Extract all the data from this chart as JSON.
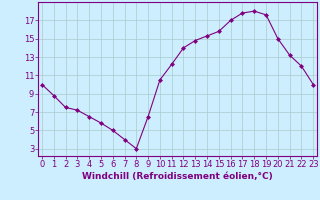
{
  "x": [
    0,
    1,
    2,
    3,
    4,
    5,
    6,
    7,
    8,
    9,
    10,
    11,
    12,
    13,
    14,
    15,
    16,
    17,
    18,
    19,
    20,
    21,
    22,
    23
  ],
  "y": [
    10.0,
    8.8,
    7.5,
    7.2,
    6.5,
    5.8,
    5.0,
    4.0,
    3.0,
    6.5,
    10.5,
    12.2,
    14.0,
    14.8,
    15.3,
    15.8,
    17.0,
    17.8,
    18.0,
    17.6,
    15.0,
    13.2,
    12.0,
    10.0
  ],
  "line_color": "#800080",
  "marker": "D",
  "marker_size": 2.0,
  "bg_color": "#cceeff",
  "grid_color": "#aacccc",
  "xlabel": "Windchill (Refroidissement éolien,°C)",
  "yticks": [
    3,
    5,
    7,
    9,
    11,
    13,
    15,
    17
  ],
  "xticks": [
    0,
    1,
    2,
    3,
    4,
    5,
    6,
    7,
    8,
    9,
    10,
    11,
    12,
    13,
    14,
    15,
    16,
    17,
    18,
    19,
    20,
    21,
    22,
    23
  ],
  "xlim": [
    -0.3,
    23.3
  ],
  "ylim": [
    2.2,
    19.0
  ],
  "xlabel_fontsize": 6.5,
  "tick_fontsize": 6.0,
  "label_color": "#800080",
  "spine_color": "#800080"
}
